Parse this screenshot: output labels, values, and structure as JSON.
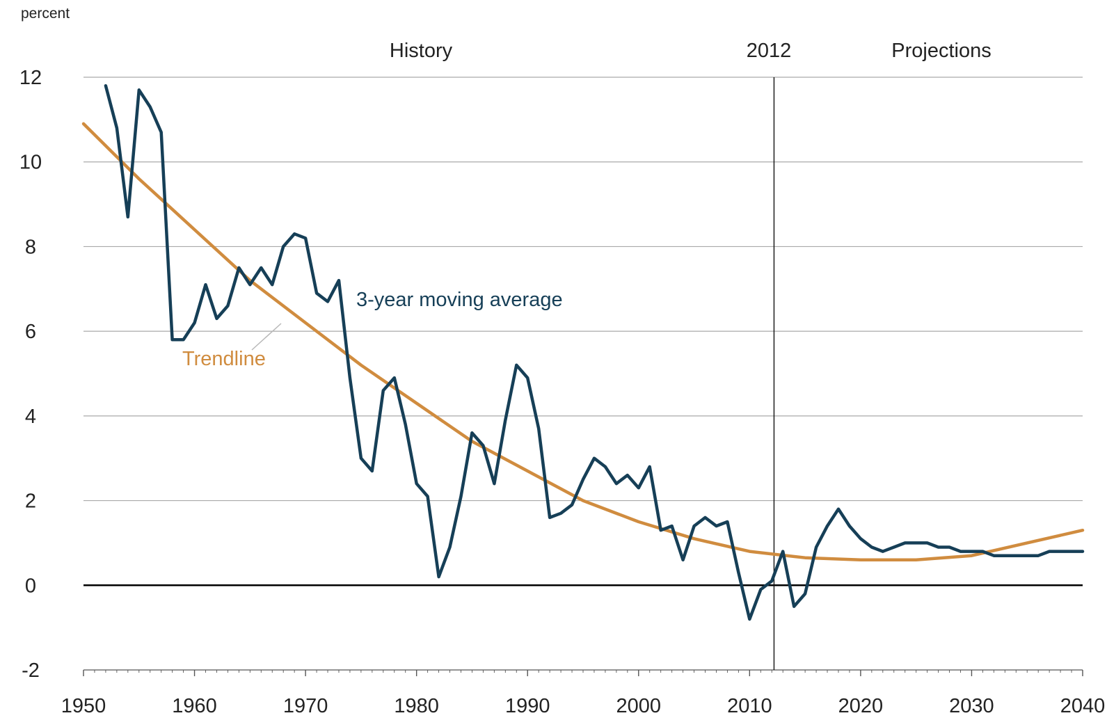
{
  "chart_data": {
    "type": "line",
    "ylabel": "percent",
    "xlim": [
      1950,
      2040
    ],
    "ylim": [
      -2,
      12
    ],
    "x_ticks": [
      "1950",
      "1960",
      "1970",
      "1980",
      "1990",
      "2000",
      "2010",
      "2020",
      "2030",
      "2040"
    ],
    "y_ticks": [
      "12",
      "10",
      "8",
      "6",
      "4",
      "2",
      "0",
      "-2"
    ],
    "grid": true,
    "divider": {
      "x": 2012.2,
      "label": "2012"
    },
    "section_labels": {
      "history": "History",
      "projections": "Projections"
    },
    "colors": {
      "moving_average": "#163f57",
      "trendline": "#d08c3f"
    },
    "series": [
      {
        "name": "3-year moving average",
        "x": [
          1952,
          1953,
          1954,
          1955,
          1956,
          1957,
          1958,
          1959,
          1960,
          1961,
          1962,
          1963,
          1964,
          1965,
          1966,
          1967,
          1968,
          1969,
          1970,
          1971,
          1972,
          1973,
          1974,
          1975,
          1976,
          1977,
          1978,
          1979,
          1980,
          1981,
          1982,
          1983,
          1984,
          1985,
          1986,
          1987,
          1988,
          1989,
          1990,
          1991,
          1992,
          1993,
          1994,
          1995,
          1996,
          1997,
          1998,
          1999,
          2000,
          2001,
          2002,
          2003,
          2004,
          2005,
          2006,
          2007,
          2008,
          2009,
          2010,
          2011,
          2012,
          2013,
          2014,
          2015,
          2016,
          2017,
          2018,
          2019,
          2020,
          2021,
          2022,
          2023,
          2024,
          2025,
          2026,
          2027,
          2028,
          2029,
          2030,
          2031,
          2032,
          2033,
          2034,
          2035,
          2036,
          2037,
          2038,
          2039,
          2040
        ],
        "values": [
          11.8,
          10.8,
          8.7,
          11.7,
          11.3,
          10.7,
          5.8,
          5.8,
          6.2,
          7.1,
          6.3,
          6.6,
          7.5,
          7.1,
          7.5,
          7.1,
          8.0,
          8.3,
          8.2,
          6.9,
          6.7,
          7.2,
          4.9,
          3.0,
          2.7,
          4.6,
          4.9,
          3.8,
          2.4,
          2.1,
          0.2,
          0.9,
          2.1,
          3.6,
          3.3,
          2.4,
          3.9,
          5.2,
          4.9,
          3.7,
          1.6,
          1.7,
          1.9,
          2.5,
          3.0,
          2.8,
          2.4,
          2.6,
          2.3,
          2.8,
          1.3,
          1.4,
          0.6,
          1.4,
          1.6,
          1.4,
          1.5,
          0.3,
          -0.8,
          -0.1,
          0.1,
          0.8,
          -0.5,
          -0.2,
          0.9,
          1.4,
          1.8,
          1.4,
          1.1,
          0.9,
          0.8,
          0.9,
          1.0,
          1.0,
          1.0,
          0.9,
          0.9,
          0.8,
          0.8,
          0.8,
          0.7,
          0.7,
          0.7,
          0.7,
          0.7,
          0.8,
          0.8,
          0.8,
          0.8
        ]
      },
      {
        "name": "Trendline",
        "x": [
          1950,
          1955,
          1960,
          1965,
          1970,
          1975,
          1980,
          1985,
          1990,
          1995,
          2000,
          2005,
          2010,
          2015,
          2020,
          2025,
          2030,
          2035,
          2040
        ],
        "values": [
          10.9,
          9.6,
          8.4,
          7.2,
          6.2,
          5.2,
          4.3,
          3.4,
          2.7,
          2.0,
          1.5,
          1.1,
          0.8,
          0.65,
          0.6,
          0.6,
          0.7,
          1.0,
          1.3
        ]
      }
    ]
  }
}
